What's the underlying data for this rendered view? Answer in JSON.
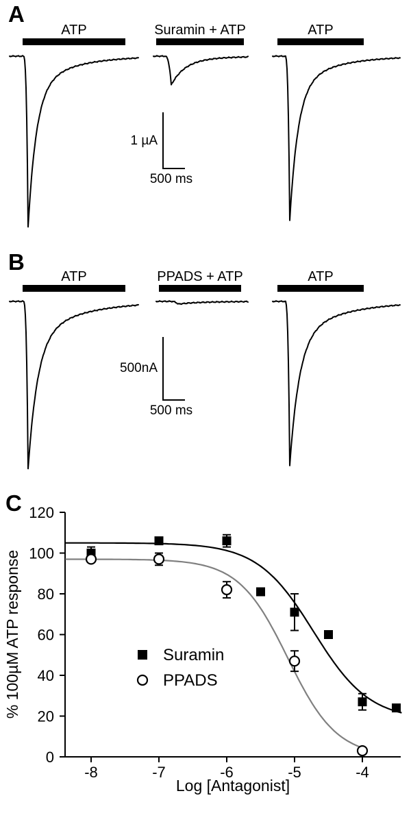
{
  "figure": {
    "panelA": {
      "label": "A",
      "scale": {
        "v": "1 µA",
        "h": "500 ms"
      },
      "traces": [
        {
          "label": "ATP",
          "amp": 250,
          "onset": 20,
          "rise": 7,
          "tau1": 12,
          "tau2": 55,
          "f": 0.8,
          "len": 188
        },
        {
          "label": "Suramin + ATP",
          "amp": 42,
          "onset": 16,
          "rise": 10,
          "tau1": 20,
          "tau2": 60,
          "f": 0.85,
          "len": 138
        },
        {
          "label": "ATP",
          "amp": 240,
          "onset": 18,
          "rise": 7,
          "tau1": 12,
          "tau2": 55,
          "f": 0.8,
          "len": 186
        }
      ]
    },
    "panelB": {
      "label": "B",
      "scale": {
        "v": "500nA",
        "h": "500 ms"
      },
      "traces": [
        {
          "label": "ATP",
          "amp": 245,
          "onset": 20,
          "rise": 7,
          "tau1": 14,
          "tau2": 70,
          "f": 0.78,
          "len": 188
        },
        {
          "label": "PPADS + ATP",
          "amp": 4,
          "onset": 20,
          "rise": 12,
          "tau1": 25,
          "tau2": 60,
          "f": 0.6,
          "len": 134
        },
        {
          "label": "ATP",
          "amp": 240,
          "onset": 18,
          "rise": 7,
          "tau1": 14,
          "tau2": 70,
          "f": 0.78,
          "len": 186
        }
      ]
    },
    "panelC": {
      "label": "C"
    }
  },
  "chart_data": {
    "type": "scatter",
    "title": "",
    "xlabel": "Log [Antagonist]",
    "ylabel": "% 100µM ATP response",
    "xlim": [
      -8.5,
      -3.3
    ],
    "ylim": [
      0,
      120
    ],
    "xticks": [
      -8,
      -7,
      -6,
      -5,
      -4
    ],
    "yticks": [
      0,
      20,
      40,
      60,
      80,
      100,
      120
    ],
    "grid": false,
    "legend_position": "inside-left-middle",
    "series": [
      {
        "name": "Suramin",
        "marker": "filled-square",
        "color": "#000000",
        "x": [
          -8,
          -7,
          -6,
          -5.5,
          -5,
          -4.5,
          -4,
          -3.5
        ],
        "y": [
          100,
          106,
          106,
          81,
          71,
          60,
          27,
          24
        ],
        "yerr": [
          3,
          0,
          3,
          0,
          9,
          0,
          4,
          0
        ],
        "fit": {
          "top": 105,
          "bottom": 18,
          "logIC50": -4.72,
          "hill": 1.05,
          "xstart": -8.38,
          "xend": -3.42,
          "color": "#000000"
        }
      },
      {
        "name": "PPADS",
        "marker": "open-circle",
        "color": "#000000",
        "x": [
          -8,
          -7,
          -6,
          -5,
          -4
        ],
        "y": [
          97,
          97,
          82,
          47,
          3
        ],
        "yerr": [
          0,
          3,
          4,
          5,
          0
        ],
        "fit": {
          "top": 97,
          "bottom": 0,
          "logIC50": -5.1,
          "hill": 1.2,
          "xstart": -8.38,
          "xend": -3.98,
          "color": "#808080"
        }
      }
    ]
  }
}
